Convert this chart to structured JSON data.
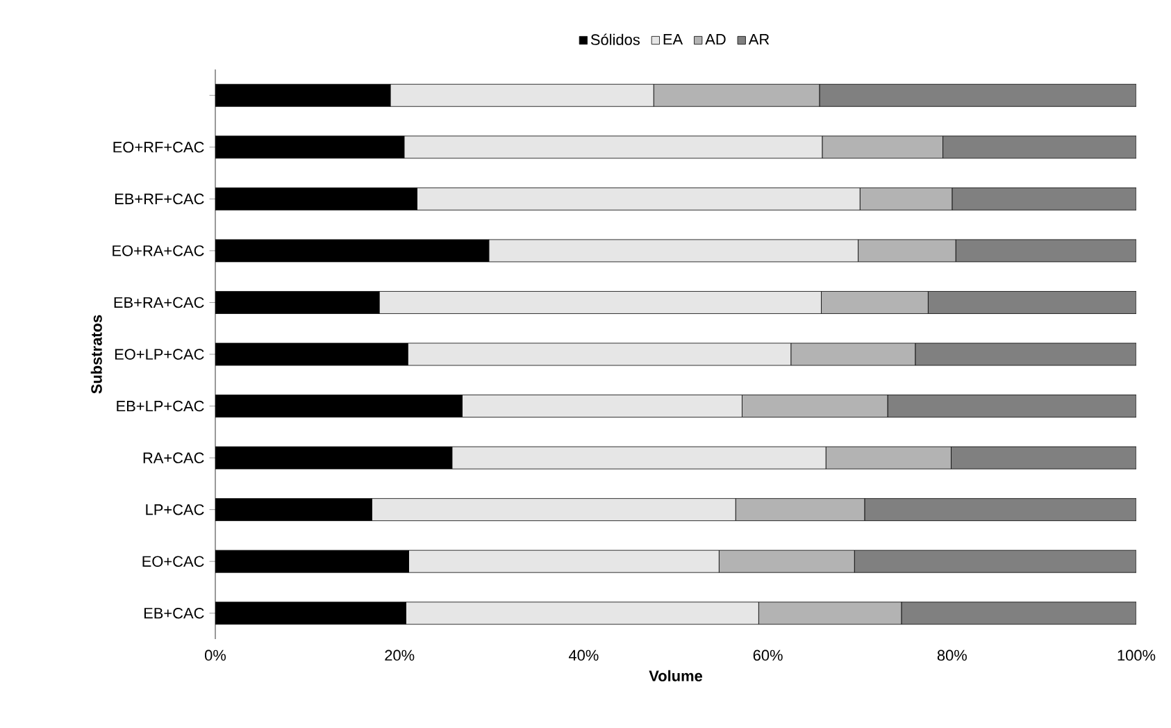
{
  "chart_data": {
    "type": "bar",
    "orientation": "horizontal",
    "stacked": true,
    "xlabel": "Volume",
    "ylabel": "Substratos",
    "categories": [
      null,
      "EO+RF+CAC",
      "EB+RF+CAC",
      "EO+RA+CAC",
      "EB+RA+CAC",
      "EO+LP+CAC",
      "EB+LP+CAC",
      "RA+CAC",
      "LP+CAC",
      "EO+CAC",
      "EB+CAC"
    ],
    "series": [
      {
        "name": "Sólidos",
        "color": "#000000",
        "values": [
          19.0,
          20.5,
          21.9,
          29.7,
          17.8,
          20.9,
          26.8,
          25.7,
          17.0,
          21.0,
          20.7
        ]
      },
      {
        "name": "EA",
        "color": "#e6e6e6",
        "values": [
          28.6,
          45.4,
          48.1,
          40.1,
          48.0,
          41.6,
          30.4,
          40.6,
          39.5,
          33.7,
          38.3
        ]
      },
      {
        "name": "AD",
        "color": "#b3b3b3",
        "values": [
          18.0,
          13.1,
          10.0,
          10.6,
          11.6,
          13.5,
          15.8,
          13.6,
          14.0,
          14.7,
          15.5
        ]
      },
      {
        "name": "AR",
        "color": "#808080",
        "values": [
          34.4,
          21.0,
          20.0,
          19.6,
          22.6,
          24.0,
          27.0,
          20.1,
          29.5,
          30.6,
          25.5
        ]
      }
    ],
    "xlim": [
      0,
      100
    ],
    "xticks": [
      {
        "value": 0,
        "label": "0%"
      },
      {
        "value": 20,
        "label": "20%"
      },
      {
        "value": 40,
        "label": "40%"
      },
      {
        "value": 60,
        "label": "60%"
      },
      {
        "value": 80,
        "label": "80%"
      },
      {
        "value": 100,
        "label": "100%"
      }
    ],
    "legend": "top",
    "grid": false
  }
}
